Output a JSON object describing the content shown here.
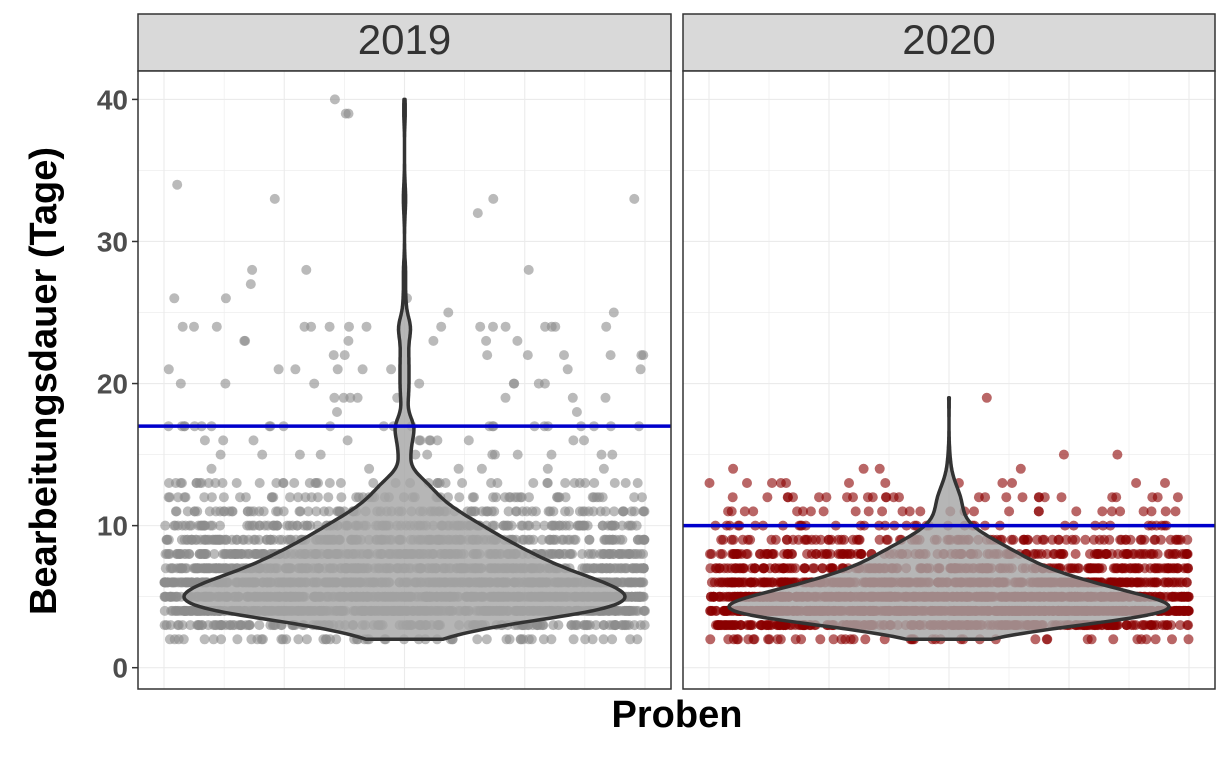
{
  "chart_data": {
    "type": "scatter",
    "subtype": "jitter-violin",
    "xlabel": "Proben",
    "ylabel": "Bearbeitungsdauer (Tage)",
    "ylim": [
      -1.5,
      42
    ],
    "yticks": [
      0,
      10,
      20,
      30,
      40
    ],
    "grid": true,
    "panels": [
      {
        "strip": "2019",
        "point_color": "#8c8c8c",
        "mean_line": 17,
        "mean_line_color": "#0000cc",
        "distribution": [
          {
            "days": 2,
            "count": 55
          },
          {
            "days": 3,
            "count": 150
          },
          {
            "days": 4,
            "count": 380
          },
          {
            "days": 5,
            "count": 420
          },
          {
            "days": 6,
            "count": 360
          },
          {
            "days": 7,
            "count": 280
          },
          {
            "days": 8,
            "count": 230
          },
          {
            "days": 9,
            "count": 180
          },
          {
            "days": 10,
            "count": 140
          },
          {
            "days": 11,
            "count": 95
          },
          {
            "days": 12,
            "count": 60
          },
          {
            "days": 13,
            "count": 45
          },
          {
            "days": 14,
            "count": 6
          },
          {
            "days": 15,
            "count": 12
          },
          {
            "days": 16,
            "count": 12
          },
          {
            "days": 17,
            "count": 24
          },
          {
            "days": 18,
            "count": 2
          },
          {
            "days": 19,
            "count": 8
          },
          {
            "days": 20,
            "count": 8
          },
          {
            "days": 21,
            "count": 8
          },
          {
            "days": 22,
            "count": 8
          },
          {
            "days": 23,
            "count": 6
          },
          {
            "days": 24,
            "count": 16
          },
          {
            "days": 25,
            "count": 2
          },
          {
            "days": 26,
            "count": 3
          },
          {
            "days": 27,
            "count": 1
          },
          {
            "days": 28,
            "count": 3
          },
          {
            "days": 32,
            "count": 1
          },
          {
            "days": 33,
            "count": 3
          },
          {
            "days": 34,
            "count": 1
          },
          {
            "days": 39,
            "count": 2
          },
          {
            "days": 40,
            "count": 1
          }
        ]
      },
      {
        "strip": "2020",
        "point_color": "#8b0000",
        "mean_line": 10,
        "mean_line_color": "#0000cc",
        "distribution": [
          {
            "days": 2,
            "count": 45
          },
          {
            "days": 3,
            "count": 260
          },
          {
            "days": 4,
            "count": 560
          },
          {
            "days": 5,
            "count": 420
          },
          {
            "days": 6,
            "count": 300
          },
          {
            "days": 7,
            "count": 200
          },
          {
            "days": 8,
            "count": 150
          },
          {
            "days": 9,
            "count": 95
          },
          {
            "days": 10,
            "count": 40
          },
          {
            "days": 11,
            "count": 28
          },
          {
            "days": 12,
            "count": 28
          },
          {
            "days": 13,
            "count": 12
          },
          {
            "days": 14,
            "count": 4
          },
          {
            "days": 15,
            "count": 2
          },
          {
            "days": 19,
            "count": 1
          }
        ]
      }
    ]
  }
}
